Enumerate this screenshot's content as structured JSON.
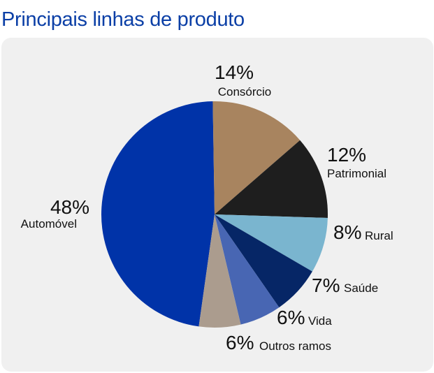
{
  "header": {
    "title": "Principais linhas de produto"
  },
  "chart_data": {
    "type": "pie",
    "title": "Principais linhas de produto",
    "unit": "%",
    "slices": [
      {
        "label": "Automóvel",
        "value": 48,
        "pct_label": "48%",
        "color": "#0033a8"
      },
      {
        "label": "Consórcio",
        "value": 14,
        "pct_label": "14%",
        "color": "#a8845f"
      },
      {
        "label": "Patrimonial",
        "value": 12,
        "pct_label": "12%",
        "color": "#1e1e1e"
      },
      {
        "label": "Rural",
        "value": 8,
        "pct_label": "8%",
        "color": "#7ab5cf"
      },
      {
        "label": "Saúde",
        "value": 7,
        "pct_label": "7%",
        "color": "#062666"
      },
      {
        "label": "Vida",
        "value": 6,
        "pct_label": "6%",
        "color": "#4866b3"
      },
      {
        "label": "Outros ramos",
        "value": 6,
        "pct_label": "6%",
        "color": "#ab9c8e"
      }
    ]
  }
}
